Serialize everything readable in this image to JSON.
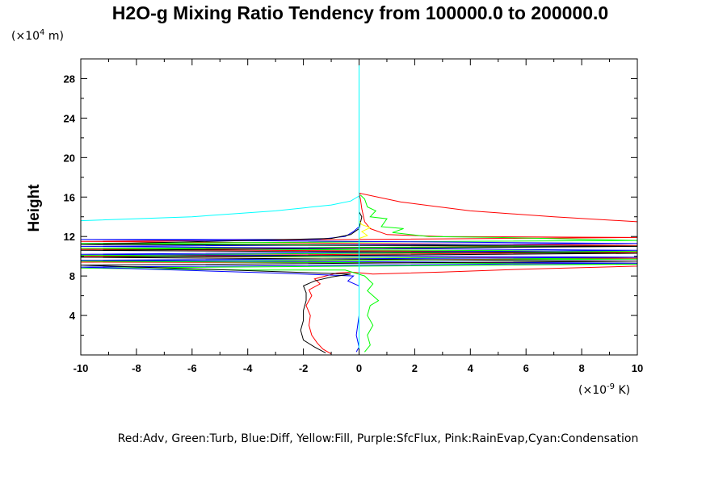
{
  "chart_data": {
    "type": "line",
    "title": "H2O-g Mixing Ratio Tendency from 100000.0 to 200000.0",
    "ylabel": "Height",
    "y_unit": "(×10",
    "y_unit_exp": "4",
    "y_unit_end": " m)",
    "x_unit": "(×10",
    "x_unit_exp": "-9",
    "x_unit_end": " K)",
    "xlim": [
      -10,
      10
    ],
    "ylim": [
      0,
      30
    ],
    "x_ticks": [
      "-10",
      "-8",
      "-6",
      "-4",
      "-2",
      "0",
      "2",
      "4",
      "6",
      "8",
      "10"
    ],
    "y_ticks": [
      "4",
      "8",
      "12",
      "16",
      "20",
      "24",
      "28"
    ],
    "legend_text": "Red:Adv, Green:Turb, Blue:Diff, Yellow:Fill, Purple:SfcFlux, Pink:RainEvap,Cyan:Condensation",
    "series": [
      {
        "color": "#ff0000",
        "points": [
          [
            -1.0,
            0.1
          ],
          [
            -1.3,
            0.6
          ],
          [
            -1.5,
            1.2
          ],
          [
            -1.7,
            2.0
          ],
          [
            -1.8,
            3.0
          ],
          [
            -1.75,
            4.0
          ],
          [
            -1.9,
            5.0
          ],
          [
            -1.7,
            6.0
          ],
          [
            -1.8,
            6.6
          ],
          [
            -1.4,
            7.2
          ],
          [
            -1.6,
            7.7
          ],
          [
            -1.2,
            8.0
          ],
          [
            -0.8,
            8.3
          ],
          [
            -0.3,
            8.4
          ],
          [
            0.5,
            8.2
          ],
          [
            3.0,
            8.4
          ],
          [
            6.0,
            8.7
          ],
          [
            10,
            9.0
          ],
          [
            10,
            9.3
          ],
          [
            -10,
            9.4
          ],
          [
            10,
            9.8
          ],
          [
            -10,
            10.0
          ],
          [
            10,
            10.4
          ],
          [
            -10,
            10.7
          ],
          [
            10,
            11.1
          ],
          [
            -10,
            11.5
          ],
          [
            10,
            11.9
          ],
          [
            3.0,
            12.0
          ],
          [
            1.0,
            12.2
          ],
          [
            0.4,
            12.8
          ],
          [
            0.2,
            13.5
          ],
          [
            0.1,
            14.8
          ],
          [
            0.05,
            15.8
          ],
          [
            0.0,
            16.4
          ],
          [
            1.5,
            15.5
          ],
          [
            4.0,
            14.6
          ],
          [
            7.0,
            14.0
          ],
          [
            10,
            13.5
          ]
        ]
      },
      {
        "color": "#00ff00",
        "points": [
          [
            0.2,
            0.3
          ],
          [
            0.4,
            1.0
          ],
          [
            0.3,
            2.0
          ],
          [
            0.5,
            3.0
          ],
          [
            0.3,
            4.0
          ],
          [
            0.4,
            5.0
          ],
          [
            0.7,
            5.5
          ],
          [
            0.3,
            6.5
          ],
          [
            0.5,
            7.2
          ],
          [
            0.2,
            8.0
          ],
          [
            -0.5,
            8.6
          ],
          [
            -4.0,
            8.6
          ],
          [
            -10,
            8.8
          ],
          [
            10,
            9.2
          ],
          [
            -10,
            9.5
          ],
          [
            10,
            9.7
          ],
          [
            -10,
            10.1
          ],
          [
            10,
            10.5
          ],
          [
            -10,
            10.8
          ],
          [
            10,
            11.0
          ],
          [
            -10,
            11.3
          ],
          [
            10,
            11.6
          ],
          [
            5.0,
            11.9
          ],
          [
            2.5,
            12.0
          ],
          [
            1.2,
            12.4
          ],
          [
            1.6,
            12.8
          ],
          [
            0.8,
            13.0
          ],
          [
            1.0,
            13.8
          ],
          [
            0.4,
            14.0
          ],
          [
            0.6,
            14.6
          ],
          [
            0.3,
            15.0
          ],
          [
            0.2,
            15.8
          ],
          [
            0.05,
            16.2
          ]
        ]
      },
      {
        "color": "#0000ff",
        "points": [
          [
            -0.1,
            0.3
          ],
          [
            0.0,
            0.8
          ],
          [
            -0.1,
            2.0
          ],
          [
            0.0,
            4.0
          ],
          [
            0.0,
            7.0
          ],
          [
            -0.4,
            7.5
          ],
          [
            -0.2,
            8.0
          ],
          [
            -3.0,
            8.3
          ],
          [
            -10,
            8.9
          ],
          [
            10,
            9.3
          ],
          [
            -10,
            9.6
          ],
          [
            10,
            9.9
          ],
          [
            -10,
            10.2
          ],
          [
            10,
            10.6
          ],
          [
            -10,
            11.0
          ],
          [
            10,
            11.3
          ],
          [
            -10,
            11.7
          ],
          [
            -1.5,
            11.7
          ],
          [
            -0.5,
            12.0
          ],
          [
            -0.2,
            12.5
          ],
          [
            0.0,
            13.0
          ]
        ]
      },
      {
        "color": "#000000",
        "points": [
          [
            -1.2,
            0.2
          ],
          [
            -1.6,
            0.8
          ],
          [
            -2.0,
            1.5
          ],
          [
            -2.1,
            2.5
          ],
          [
            -2.0,
            3.5
          ],
          [
            -2.0,
            4.5
          ],
          [
            -1.9,
            5.5
          ],
          [
            -1.9,
            6.3
          ],
          [
            -2.0,
            7.0
          ],
          [
            -1.6,
            7.5
          ],
          [
            -1.0,
            7.9
          ],
          [
            -0.3,
            8.2
          ],
          [
            -10,
            9.1
          ],
          [
            10,
            9.5
          ],
          [
            -10,
            9.9
          ],
          [
            10,
            10.3
          ],
          [
            -10,
            10.6
          ],
          [
            10,
            11.0
          ],
          [
            -10,
            11.2
          ],
          [
            -1.0,
            11.8
          ],
          [
            -0.3,
            12.2
          ],
          [
            0.0,
            12.8
          ],
          [
            0.05,
            13.4
          ],
          [
            0.1,
            14.0
          ],
          [
            0.0,
            14.5
          ]
        ]
      },
      {
        "color": "#ffff00",
        "points": [
          [
            0.0,
            11.8
          ],
          [
            0.3,
            12.1
          ],
          [
            0.1,
            12.5
          ],
          [
            0.4,
            12.9
          ],
          [
            0.1,
            13.2
          ],
          [
            0.0,
            13.6
          ]
        ]
      },
      {
        "color": "#00ffff",
        "points": [
          [
            0.0,
            0.0
          ],
          [
            0.0,
            10.0
          ],
          [
            0.0,
            30.0
          ]
        ]
      },
      {
        "color": "#00ffff",
        "points": [
          [
            -10,
            13.6
          ],
          [
            -6,
            14.0
          ],
          [
            -3,
            14.6
          ],
          [
            -1,
            15.2
          ],
          [
            -0.3,
            15.6
          ],
          [
            0.0,
            16.1
          ]
        ]
      }
    ]
  }
}
